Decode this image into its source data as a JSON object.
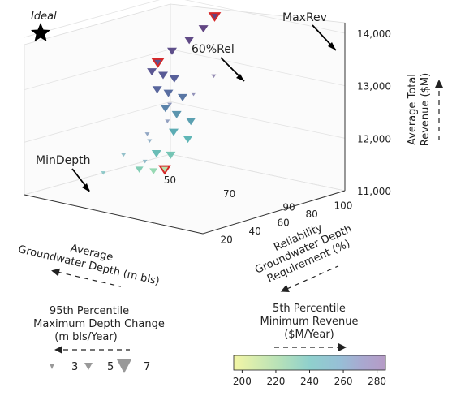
{
  "chart_data": {
    "type": "scatter",
    "projection": "3d",
    "x_axis": {
      "label_line1": "Average",
      "label_line2": "Groundwater Depth (m bls)",
      "ticks": [
        50,
        70,
        90
      ],
      "range": [
        45,
        105
      ],
      "direction_arrow": "left"
    },
    "y_axis": {
      "label_line1": "Reliability",
      "label_line2": "Groundwater Depth",
      "label_line3": "Requirement (%)",
      "ticks": [
        100,
        80,
        60,
        40,
        20
      ],
      "range": [
        10,
        110
      ],
      "direction_arrow": "left"
    },
    "z_axis": {
      "label_line1": "Average Total",
      "label_line2": "Revenue ($M)",
      "ticks": [
        "11,000",
        "12,000",
        "13,000",
        "14,000"
      ],
      "tick_values": [
        11000,
        12000,
        13000,
        14000
      ],
      "range": [
        11000,
        14200
      ],
      "direction_arrow": "up"
    },
    "ideal": {
      "label": "Ideal",
      "marker": "star"
    },
    "annotations": [
      {
        "label": "MaxRev",
        "x": 66,
        "y": 20,
        "z": 14050
      },
      {
        "label": "60%Rel",
        "x": 66,
        "y": 60,
        "z": 13450
      },
      {
        "label": "MinDepth",
        "x": 54,
        "y": 30,
        "z": 11050
      }
    ],
    "size_legend": {
      "title_line1": "95th Percentile",
      "title_line2": "Maximum Depth Change",
      "title_line3": "(m bls/Year)",
      "entries": [
        {
          "label": "3",
          "value": 3
        },
        {
          "label": "5",
          "value": 5
        },
        {
          "label": "7",
          "value": 7
        }
      ]
    },
    "colorbar": {
      "title_line1": "5th Percentile",
      "title_line2": "Minimum Revenue",
      "title_line3": "($M/Year)",
      "ticks": [
        "200",
        "220",
        "240",
        "260",
        "280"
      ],
      "tick_values": [
        200,
        220,
        240,
        260,
        280
      ],
      "range": [
        195,
        285
      ],
      "colormap": "viridis-like pastel"
    },
    "points": [
      {
        "x": 54,
        "y": 30,
        "z": 11050,
        "color": 205,
        "size": 6,
        "highlight": true
      },
      {
        "x": 55,
        "y": 40,
        "z": 11100,
        "color": 212,
        "size": 5
      },
      {
        "x": 55,
        "y": 50,
        "z": 11200,
        "color": 218,
        "size": 5
      },
      {
        "x": 56,
        "y": 30,
        "z": 11350,
        "color": 222,
        "size": 6
      },
      {
        "x": 56,
        "y": 40,
        "z": 11450,
        "color": 226,
        "size": 6
      },
      {
        "x": 57,
        "y": 20,
        "z": 11600,
        "color": 230,
        "size": 6
      },
      {
        "x": 57,
        "y": 30,
        "z": 11800,
        "color": 234,
        "size": 6
      },
      {
        "x": 58,
        "y": 20,
        "z": 11950,
        "color": 238,
        "size": 6
      },
      {
        "x": 58,
        "y": 30,
        "z": 12150,
        "color": 242,
        "size": 6
      },
      {
        "x": 59,
        "y": 40,
        "z": 12350,
        "color": 248,
        "size": 6
      },
      {
        "x": 60,
        "y": 30,
        "z": 12500,
        "color": 254,
        "size": 6
      },
      {
        "x": 60,
        "y": 40,
        "z": 12650,
        "color": 258,
        "size": 6
      },
      {
        "x": 61,
        "y": 50,
        "z": 12800,
        "color": 262,
        "size": 6
      },
      {
        "x": 62,
        "y": 40,
        "z": 12950,
        "color": 265,
        "size": 6
      },
      {
        "x": 63,
        "y": 50,
        "z": 13100,
        "color": 268,
        "size": 6
      },
      {
        "x": 64,
        "y": 60,
        "z": 13250,
        "color": 270,
        "size": 6
      },
      {
        "x": 66,
        "y": 60,
        "z": 13450,
        "color": 272,
        "size": 6,
        "highlight": true
      },
      {
        "x": 66,
        "y": 50,
        "z": 13600,
        "color": 275,
        "size": 6
      },
      {
        "x": 67,
        "y": 40,
        "z": 13750,
        "color": 278,
        "size": 6
      },
      {
        "x": 67,
        "y": 30,
        "z": 13900,
        "color": 280,
        "size": 6
      },
      {
        "x": 66,
        "y": 20,
        "z": 14050,
        "color": 283,
        "size": 6,
        "highlight": true
      },
      {
        "x": 70,
        "y": 60,
        "z": 12700,
        "color": 262,
        "size": 3
      },
      {
        "x": 74,
        "y": 70,
        "z": 12500,
        "color": 258,
        "size": 3
      },
      {
        "x": 72,
        "y": 80,
        "z": 12300,
        "color": 252,
        "size": 3
      },
      {
        "x": 68,
        "y": 70,
        "z": 12050,
        "color": 246,
        "size": 3
      },
      {
        "x": 64,
        "y": 80,
        "z": 11800,
        "color": 238,
        "size": 3
      },
      {
        "x": 62,
        "y": 90,
        "z": 11500,
        "color": 230,
        "size": 3
      },
      {
        "x": 78,
        "y": 60,
        "z": 13000,
        "color": 268,
        "size": 3
      },
      {
        "x": 80,
        "y": 50,
        "z": 13300,
        "color": 274,
        "size": 3
      },
      {
        "x": 76,
        "y": 90,
        "z": 11900,
        "color": 240,
        "size": 3
      }
    ]
  }
}
